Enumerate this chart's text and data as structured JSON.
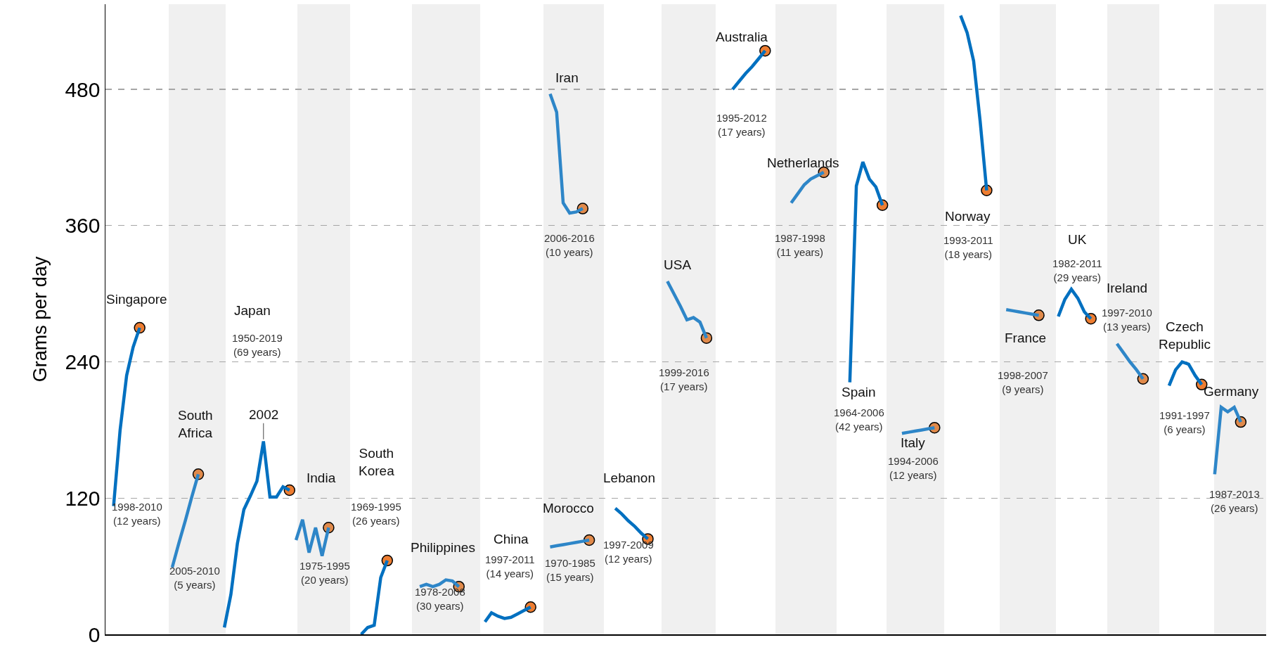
{
  "chart_data": {
    "type": "line",
    "ylabel": "Grams per day",
    "ylim": [
      0,
      555
    ],
    "yticks": [
      0,
      120,
      240,
      360,
      480
    ],
    "grid": "y",
    "tick_labels": "y",
    "categories": [
      null,
      null,
      null,
      null,
      null,
      null,
      null,
      null,
      null,
      null,
      null,
      null,
      null,
      null,
      null,
      null,
      null,
      null,
      null,
      null,
      null,
      null,
      null,
      null,
      null,
      null,
      null,
      null,
      null,
      null,
      null,
      null,
      null,
      null,
      null,
      null,
      null,
      null,
      null,
      null,
      null,
      null,
      null,
      null,
      null,
      null,
      null,
      null,
      null,
      null,
      null,
      null,
      null,
      null,
      null,
      null,
      null,
      null,
      null,
      null,
      null,
      null,
      null,
      null,
      null,
      null,
      null,
      null,
      null,
      null,
      null,
      null,
      null,
      null,
      null,
      null,
      null,
      null,
      null,
      null,
      null,
      null,
      null,
      null,
      null,
      null,
      null,
      null,
      null,
      null,
      null,
      null,
      null,
      null,
      null,
      null,
      null,
      null,
      null,
      null,
      null,
      null,
      null,
      null,
      null,
      null,
      null,
      null,
      null,
      null,
      null,
      null,
      null,
      null,
      null,
      null,
      null,
      null,
      null,
      null,
      null,
      null,
      null,
      null,
      null,
      null,
      null,
      null,
      null,
      null,
      null,
      null,
      null,
      null,
      null,
      null,
      null,
      null,
      null,
      null,
      null,
      null,
      null,
      null,
      null,
      null,
      null,
      null,
      null,
      null,
      null,
      null,
      null,
      null,
      null,
      null,
      null,
      null,
      null,
      null,
      null,
      null,
      null,
      null,
      null,
      null,
      null,
      null,
      null,
      null,
      null,
      null,
      null,
      null,
      null,
      null,
      null,
      null
    ],
    "series": [
      {
        "color": "#0070c0",
        "values": [
          null,
          113,
          180,
          228,
          253,
          270,
          null,
          null,
          null,
          null,
          null,
          null,
          null,
          null,
          null,
          null,
          null,
          null,
          6,
          35,
          80,
          110,
          122,
          135,
          170,
          121,
          121,
          130,
          127,
          null,
          null,
          null,
          null,
          null,
          null,
          null,
          null,
          null,
          null,
          0,
          6,
          8,
          50,
          65,
          null,
          null,
          null,
          null,
          null,
          null,
          null,
          null,
          null,
          null,
          null,
          null,
          null,
          null,
          11,
          19,
          16,
          14,
          15,
          18,
          21,
          24,
          null,
          null,
          null,
          null,
          null,
          null,
          null,
          null,
          null,
          null,
          null,
          null,
          111,
          106,
          100,
          95,
          89,
          84,
          null,
          null,
          null,
          null,
          null,
          null,
          null,
          null,
          null,
          null,
          null,
          null,
          480,
          487,
          494,
          500,
          507,
          514,
          null,
          null,
          null,
          null,
          null,
          null,
          null,
          null,
          null,
          null,
          null,
          null,
          222,
          395,
          416,
          401,
          394,
          378,
          null,
          null,
          null,
          null,
          null,
          null,
          null,
          null,
          null,
          null,
          null,
          545,
          530,
          505,
          452,
          391,
          null,
          null,
          null,
          null,
          null,
          null,
          null,
          null,
          null,
          null,
          280,
          295,
          304,
          296,
          284,
          278,
          null,
          null,
          null,
          null,
          null,
          null,
          null,
          null,
          null,
          null,
          null,
          219,
          233,
          240,
          238,
          228,
          220,
          null,
          null,
          null,
          null,
          null,
          null,
          null,
          null,
          null
        ]
      },
      {
        "color": "#2e86c8",
        "values": [
          null,
          null,
          null,
          null,
          null,
          null,
          null,
          null,
          null,
          null,
          59,
          80,
          100,
          121,
          141,
          null,
          null,
          null,
          null,
          null,
          null,
          null,
          null,
          null,
          null,
          null,
          null,
          null,
          null,
          83,
          101,
          72,
          94,
          69,
          94,
          null,
          null,
          null,
          null,
          null,
          null,
          null,
          null,
          null,
          null,
          null,
          null,
          null,
          42,
          44,
          42,
          44,
          48,
          47,
          42,
          null,
          null,
          null,
          null,
          null,
          null,
          null,
          null,
          null,
          null,
          null,
          null,
          null,
          77,
          78,
          79,
          80,
          81,
          82,
          83,
          null,
          null,
          null,
          null,
          null,
          null,
          null,
          null,
          null,
          null,
          null,
          311,
          300,
          289,
          277,
          279,
          275,
          261,
          null,
          null,
          null,
          null,
          null,
          null,
          null,
          null,
          null,
          null,
          null,
          null,
          380,
          388,
          396,
          401,
          404,
          407,
          null,
          null,
          null,
          null,
          null,
          null,
          null,
          null,
          null,
          null,
          null,
          177,
          178,
          179,
          180,
          181,
          182,
          null,
          null,
          null,
          null,
          null,
          null,
          null,
          null,
          null,
          null,
          286,
          285,
          284,
          283,
          282,
          281,
          null,
          null,
          null,
          null,
          null,
          null,
          null,
          null,
          null,
          null,
          null,
          256,
          248,
          240,
          233,
          225,
          null,
          null,
          null,
          null,
          null,
          null,
          null,
          null,
          null,
          null,
          141,
          200,
          196,
          200,
          187,
          null,
          null,
          null
        ]
      },
      {
        "color": "#2e86c8",
        "values": [
          null,
          null,
          null,
          null,
          null,
          null,
          null,
          null,
          null,
          null,
          null,
          null,
          null,
          null,
          null,
          null,
          null,
          null,
          null,
          null,
          null,
          null,
          null,
          null,
          null,
          null,
          null,
          null,
          null,
          null,
          null,
          null,
          null,
          null,
          null,
          null,
          null,
          null,
          null,
          null,
          null,
          null,
          null,
          null,
          null,
          null,
          null,
          null,
          null,
          null,
          null,
          null,
          null,
          null,
          null,
          null,
          null,
          null,
          null,
          null,
          null,
          null,
          null,
          null,
          null,
          null,
          null,
          null,
          476,
          460,
          380,
          371,
          372,
          375,
          null,
          null,
          null,
          null,
          null,
          null,
          null,
          null,
          null,
          null,
          null,
          null,
          null,
          null,
          null,
          null,
          null,
          null,
          null,
          null,
          null,
          null,
          null,
          null,
          null,
          null,
          null,
          null,
          null,
          null,
          null,
          null,
          null,
          null,
          null,
          null,
          null,
          null,
          null,
          null,
          null,
          null,
          null,
          null,
          null,
          null,
          null,
          null,
          null,
          null,
          null,
          null,
          null,
          null,
          null,
          null,
          null,
          null,
          null,
          null,
          null,
          null,
          null,
          null,
          null,
          null,
          null,
          null,
          null,
          null,
          null,
          null,
          null,
          null,
          null,
          null,
          null,
          null,
          null,
          null,
          null,
          null,
          null,
          null,
          null,
          null,
          null,
          null,
          null,
          null,
          null,
          null,
          null,
          null,
          null,
          null,
          null,
          null,
          null,
          null,
          null,
          null,
          null,
          null
        ]
      },
      {
        "type": "scatter",
        "marker": "circle",
        "color": "#ed7d31",
        "values": [
          null,
          null,
          null,
          null,
          null,
          270,
          null,
          null,
          null,
          null,
          null,
          null,
          null,
          null,
          null,
          null,
          null,
          null,
          null,
          null,
          null,
          null,
          null,
          null,
          null,
          null,
          null,
          null,
          127,
          null,
          null,
          null,
          null,
          null,
          null,
          null,
          null,
          null,
          null,
          null,
          null,
          null,
          null,
          65,
          null,
          null,
          null,
          null,
          null,
          null,
          null,
          null,
          null,
          null,
          null,
          null,
          null,
          null,
          null,
          null,
          null,
          null,
          null,
          null,
          null,
          24,
          null,
          null,
          null,
          null,
          null,
          null,
          null,
          null,
          null,
          null,
          null,
          null,
          null,
          null,
          null,
          null,
          null,
          84,
          null,
          null,
          null,
          null,
          null,
          null,
          null,
          null,
          null,
          null,
          null,
          null,
          null,
          null,
          null,
          null,
          null,
          514,
          null,
          null,
          null,
          null,
          null,
          null,
          null,
          null,
          null,
          null,
          null,
          null,
          null,
          null,
          null,
          null,
          null,
          378,
          null,
          null,
          null,
          null,
          null,
          null,
          null,
          null,
          null,
          null,
          null,
          null,
          null,
          null,
          null,
          391,
          null,
          null,
          null,
          null,
          null,
          null,
          null,
          null,
          null,
          null,
          null,
          null,
          null,
          null,
          null,
          278,
          null,
          null,
          null,
          null,
          null,
          null,
          null,
          null,
          null,
          null,
          null,
          null,
          null,
          null,
          null,
          null,
          220,
          null,
          null,
          null,
          null,
          null,
          null,
          null,
          null,
          null
        ]
      },
      {
        "type": "scatter",
        "marker": "circle",
        "color": "#e08a4b",
        "values": [
          null,
          null,
          null,
          null,
          null,
          null,
          null,
          null,
          null,
          null,
          null,
          null,
          null,
          null,
          141,
          null,
          null,
          null,
          null,
          null,
          null,
          null,
          null,
          null,
          null,
          null,
          null,
          null,
          null,
          null,
          null,
          null,
          null,
          null,
          94,
          null,
          null,
          null,
          null,
          null,
          null,
          null,
          null,
          null,
          null,
          null,
          null,
          null,
          null,
          null,
          null,
          null,
          null,
          null,
          42,
          null,
          null,
          null,
          null,
          null,
          null,
          null,
          null,
          null,
          null,
          null,
          null,
          null,
          null,
          null,
          null,
          null,
          null,
          375,
          83,
          null,
          null,
          null,
          null,
          null,
          null,
          null,
          null,
          null,
          null,
          null,
          null,
          null,
          null,
          null,
          null,
          null,
          261,
          null,
          null,
          null,
          null,
          null,
          null,
          null,
          null,
          null,
          null,
          null,
          null,
          null,
          null,
          null,
          null,
          null,
          407,
          null,
          null,
          null,
          null,
          null,
          null,
          null,
          null,
          null,
          null,
          null,
          null,
          null,
          null,
          null,
          null,
          182,
          null,
          null,
          null,
          null,
          null,
          null,
          null,
          null,
          null,
          null,
          null,
          null,
          null,
          null,
          null,
          281,
          null,
          null,
          null,
          null,
          null,
          null,
          null,
          null,
          null,
          null,
          null,
          null,
          null,
          null,
          null,
          225,
          null,
          null,
          null,
          null,
          null,
          null,
          null,
          null,
          null,
          null,
          null,
          null,
          null,
          null,
          187,
          null,
          null,
          null
        ]
      }
    ],
    "annotations": [
      "Singapore",
      "1998-2010\n(12 years)",
      "South\nAfrica",
      "2005-2010\n(5 years)",
      "Japan",
      "1950-2019\n(69 years)",
      "2002",
      "India",
      "1975-1995\n(20 years)",
      "South\nKorea",
      "1969-1995\n(26 years)",
      "Philippines",
      "1978-2008\n(30 years)",
      "China",
      "1997-2011\n(14 years)",
      "Morocco",
      "1970-1985\n(15 years)",
      "Iran",
      "2006-2016\n(10 years)",
      "Lebanon",
      "1997-2009\n(12 years)",
      "USA",
      "1999-2016\n(17 years)",
      "Australia",
      "1995-2012\n(17 years)",
      "Netherlands",
      "1987-1998\n(11 years)",
      "Spain",
      "1964-2006\n(42 years)",
      "Italy",
      "1994-2006\n(12 years)",
      "Norway",
      "1993-2011\n(18 years)",
      "France",
      "1998-2007\n(9 years)",
      "UK",
      "1982-2011\n(29 years)",
      "Ireland",
      "1997-2010\n(13 years)",
      "Czech\nRepublic",
      "1991-1997\n(6 years)",
      "Germany",
      "1987-2013\n(26 years)"
    ]
  }
}
